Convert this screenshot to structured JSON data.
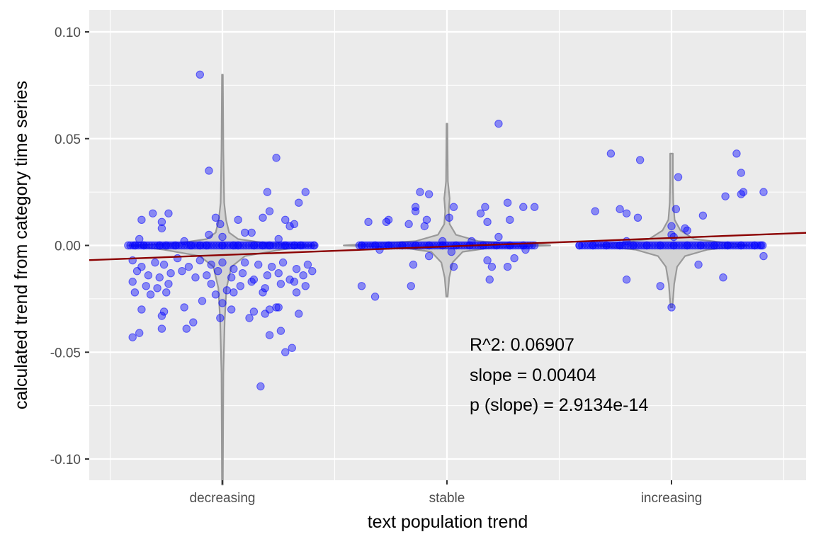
{
  "chart_data": {
    "type": "scatter",
    "title": "",
    "xlabel": "text population trend",
    "ylabel": "calculated trend from category time series",
    "categories": [
      "decreasing",
      "stable",
      "increasing"
    ],
    "ylim": [
      -0.11,
      0.11
    ],
    "yticks": [
      0.1,
      0.05,
      0.0,
      -0.05,
      -0.1
    ],
    "ytick_labels": [
      "0.10",
      "0.05",
      "0.00",
      "-0.05",
      "-0.10"
    ],
    "grid": true,
    "colors": {
      "panel": "#ebebeb",
      "grid": "#ffffff",
      "points": "#0000ff",
      "violin_fill": "#d3d3d3",
      "violin_line": "#999999",
      "regression": "#8b0000"
    },
    "regression": {
      "slope": 0.00404,
      "at_decreasing": -0.0045,
      "at_increasing": 0.0035
    },
    "annotations": [
      "R^2: 0.06907",
      "slope = 0.00404",
      "p (slope) = 2.9134e-14"
    ],
    "series": [
      {
        "category": "decreasing",
        "points": [
          [
            -0.42,
            0.0
          ],
          [
            -0.35,
            0.0
          ],
          [
            -0.28,
            0.0
          ],
          [
            -0.21,
            0.0
          ],
          [
            -0.14,
            0.0
          ],
          [
            -0.07,
            0.0
          ],
          [
            0.0,
            0.0
          ],
          [
            0.07,
            0.0
          ],
          [
            0.14,
            0.0
          ],
          [
            0.21,
            0.0
          ],
          [
            0.28,
            0.0
          ],
          [
            0.35,
            0.0
          ],
          [
            0.41,
            0.0
          ],
          [
            -0.39,
            0.0
          ],
          [
            -0.25,
            0.0
          ],
          [
            -0.1,
            0.0
          ],
          [
            0.05,
            0.0
          ],
          [
            0.18,
            0.0
          ],
          [
            0.32,
            0.0
          ],
          [
            -0.1,
            0.08
          ],
          [
            -0.06,
            0.035
          ],
          [
            0.24,
            0.041
          ],
          [
            0.2,
            0.025
          ],
          [
            0.37,
            0.025
          ],
          [
            0.34,
            0.02
          ],
          [
            0.21,
            0.016
          ],
          [
            -0.31,
            0.015
          ],
          [
            -0.24,
            0.015
          ],
          [
            -0.36,
            0.012
          ],
          [
            -0.03,
            0.013
          ],
          [
            0.07,
            0.012
          ],
          [
            0.18,
            0.013
          ],
          [
            0.28,
            0.012
          ],
          [
            -0.27,
            0.011
          ],
          [
            -0.27,
            0.008
          ],
          [
            -0.01,
            0.01
          ],
          [
            0.3,
            0.009
          ],
          [
            0.32,
            0.01
          ],
          [
            0.1,
            0.006
          ],
          [
            0.13,
            0.006
          ],
          [
            -0.06,
            0.005
          ],
          [
            0.0,
            0.004
          ],
          [
            -0.37,
            0.003
          ],
          [
            0.25,
            0.003
          ],
          [
            -0.17,
            0.002
          ],
          [
            -0.4,
            -0.007
          ],
          [
            -0.36,
            -0.01
          ],
          [
            -0.3,
            -0.008
          ],
          [
            -0.26,
            -0.009
          ],
          [
            -0.2,
            -0.006
          ],
          [
            -0.15,
            -0.01
          ],
          [
            -0.1,
            -0.007
          ],
          [
            -0.05,
            -0.009
          ],
          [
            0.0,
            -0.008
          ],
          [
            0.05,
            -0.011
          ],
          [
            0.1,
            -0.008
          ],
          [
            0.16,
            -0.009
          ],
          [
            0.22,
            -0.01
          ],
          [
            0.27,
            -0.008
          ],
          [
            0.33,
            -0.011
          ],
          [
            0.38,
            -0.009
          ],
          [
            -0.38,
            -0.012
          ],
          [
            -0.33,
            -0.014
          ],
          [
            -0.28,
            -0.015
          ],
          [
            -0.23,
            -0.013
          ],
          [
            -0.18,
            -0.012
          ],
          [
            -0.12,
            -0.015
          ],
          [
            -0.07,
            -0.014
          ],
          [
            -0.02,
            -0.012
          ],
          [
            0.04,
            -0.015
          ],
          [
            0.09,
            -0.013
          ],
          [
            0.14,
            -0.016
          ],
          [
            0.2,
            -0.014
          ],
          [
            0.25,
            -0.013
          ],
          [
            0.3,
            -0.016
          ],
          [
            0.36,
            -0.014
          ],
          [
            0.4,
            -0.012
          ],
          [
            -0.4,
            -0.017
          ],
          [
            -0.34,
            -0.019
          ],
          [
            -0.29,
            -0.02
          ],
          [
            -0.24,
            -0.018
          ],
          [
            -0.05,
            -0.018
          ],
          [
            0.02,
            -0.021
          ],
          [
            0.08,
            -0.019
          ],
          [
            0.13,
            -0.017
          ],
          [
            0.19,
            -0.02
          ],
          [
            0.26,
            -0.018
          ],
          [
            0.32,
            -0.017
          ],
          [
            0.37,
            -0.019
          ],
          [
            -0.39,
            -0.022
          ],
          [
            -0.32,
            -0.023
          ],
          [
            -0.25,
            -0.022
          ],
          [
            -0.03,
            -0.023
          ],
          [
            0.05,
            -0.022
          ],
          [
            0.18,
            -0.022
          ],
          [
            0.33,
            -0.022
          ],
          [
            -0.36,
            -0.03
          ],
          [
            -0.26,
            -0.031
          ],
          [
            -0.27,
            -0.033
          ],
          [
            -0.17,
            -0.029
          ],
          [
            -0.09,
            -0.026
          ],
          [
            0.0,
            -0.027
          ],
          [
            0.04,
            -0.03
          ],
          [
            0.12,
            -0.034
          ],
          [
            0.14,
            -0.031
          ],
          [
            0.19,
            -0.032
          ],
          [
            0.21,
            -0.03
          ],
          [
            0.24,
            -0.029
          ],
          [
            0.25,
            -0.029
          ],
          [
            0.34,
            -0.032
          ],
          [
            -0.01,
            -0.034
          ],
          [
            -0.13,
            -0.036
          ],
          [
            -0.16,
            -0.039
          ],
          [
            -0.27,
            -0.039
          ],
          [
            -0.37,
            -0.041
          ],
          [
            -0.4,
            -0.043
          ],
          [
            0.21,
            -0.042
          ],
          [
            0.26,
            -0.04
          ],
          [
            0.28,
            -0.05
          ],
          [
            0.31,
            -0.048
          ],
          [
            0.17,
            -0.066
          ]
        ]
      },
      {
        "category": "stable",
        "points": [
          [
            -0.38,
            0.0
          ],
          [
            -0.32,
            0.0
          ],
          [
            -0.26,
            0.0
          ],
          [
            -0.2,
            0.0
          ],
          [
            -0.14,
            0.0
          ],
          [
            -0.08,
            0.0
          ],
          [
            -0.02,
            0.0
          ],
          [
            0.04,
            0.0
          ],
          [
            0.1,
            0.0
          ],
          [
            0.16,
            0.0
          ],
          [
            0.22,
            0.0
          ],
          [
            0.28,
            0.0
          ],
          [
            0.34,
            0.0
          ],
          [
            0.39,
            0.0
          ],
          [
            0.23,
            0.057
          ],
          [
            -0.12,
            0.025
          ],
          [
            -0.08,
            0.024
          ],
          [
            -0.14,
            0.018
          ],
          [
            -0.14,
            0.016
          ],
          [
            0.17,
            0.018
          ],
          [
            0.27,
            0.02
          ],
          [
            0.03,
            0.018
          ],
          [
            0.15,
            0.015
          ],
          [
            0.34,
            0.018
          ],
          [
            0.39,
            0.018
          ],
          [
            -0.26,
            0.012
          ],
          [
            -0.09,
            0.012
          ],
          [
            -0.35,
            0.011
          ],
          [
            -0.27,
            0.011
          ],
          [
            -0.17,
            0.01
          ],
          [
            -0.1,
            0.009
          ],
          [
            0.01,
            0.013
          ],
          [
            0.18,
            0.011
          ],
          [
            0.28,
            0.012
          ],
          [
            0.23,
            0.004
          ],
          [
            -0.02,
            0.002
          ],
          [
            0.11,
            0.002
          ],
          [
            -0.3,
            -0.002
          ],
          [
            0.02,
            -0.003
          ],
          [
            -0.08,
            -0.005
          ],
          [
            0.3,
            -0.006
          ],
          [
            0.35,
            -0.002
          ],
          [
            -0.15,
            -0.009
          ],
          [
            0.03,
            -0.01
          ],
          [
            0.18,
            -0.007
          ],
          [
            0.2,
            -0.01
          ],
          [
            0.27,
            -0.01
          ],
          [
            0.19,
            -0.016
          ],
          [
            -0.38,
            -0.019
          ],
          [
            -0.16,
            -0.019
          ],
          [
            -0.32,
            -0.024
          ]
        ]
      },
      {
        "category": "increasing",
        "points": [
          [
            -0.41,
            0.0
          ],
          [
            -0.35,
            0.0
          ],
          [
            -0.29,
            0.0
          ],
          [
            -0.23,
            0.0
          ],
          [
            -0.17,
            0.0
          ],
          [
            -0.11,
            0.0
          ],
          [
            -0.05,
            0.0
          ],
          [
            0.01,
            0.0
          ],
          [
            0.07,
            0.0
          ],
          [
            0.13,
            0.0
          ],
          [
            0.19,
            0.0
          ],
          [
            0.25,
            0.0
          ],
          [
            0.31,
            0.0
          ],
          [
            0.37,
            0.0
          ],
          [
            0.4,
            0.0
          ],
          [
            -0.27,
            0.043
          ],
          [
            -0.14,
            0.04
          ],
          [
            0.29,
            0.043
          ],
          [
            0.31,
            0.034
          ],
          [
            0.32,
            0.025
          ],
          [
            0.41,
            0.025
          ],
          [
            0.31,
            0.024
          ],
          [
            0.24,
            0.023
          ],
          [
            0.03,
            0.032
          ],
          [
            -0.34,
            0.016
          ],
          [
            -0.23,
            0.017
          ],
          [
            -0.2,
            0.015
          ],
          [
            -0.15,
            0.013
          ],
          [
            0.02,
            0.017
          ],
          [
            0.14,
            0.014
          ],
          [
            0.06,
            0.008
          ],
          [
            0.07,
            0.007
          ],
          [
            0.0,
            0.009
          ],
          [
            0.0,
            0.005
          ],
          [
            0.01,
            0.004
          ],
          [
            -0.2,
            0.002
          ],
          [
            0.41,
            -0.005
          ],
          [
            0.12,
            -0.009
          ],
          [
            -0.2,
            -0.016
          ],
          [
            -0.05,
            -0.019
          ],
          [
            0.23,
            -0.015
          ],
          [
            0.0,
            -0.029
          ]
        ]
      }
    ]
  }
}
